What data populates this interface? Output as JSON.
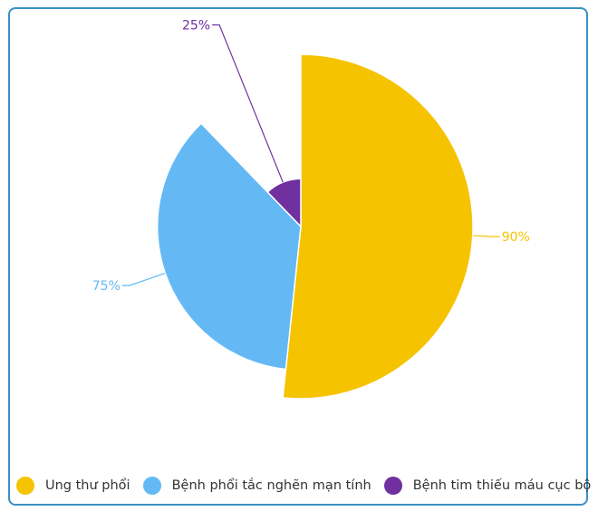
{
  "chart_data": {
    "type": "pie",
    "series": [
      {
        "name": "Ung thư phổi",
        "value": 90,
        "label": "90%",
        "color": "#f5c300"
      },
      {
        "name": "Bệnh phổi tắc nghẽn mạn tính",
        "value": 75,
        "label": "75%",
        "color": "#64b9f5"
      },
      {
        "name": "Bệnh tim thiếu máu cục bộ",
        "value": 25,
        "label": "25%",
        "color": "#7030a0"
      }
    ],
    "legend_position": "bottom-left"
  },
  "colors": {
    "border": "#3a8fc4",
    "separator": "#ffffff"
  }
}
